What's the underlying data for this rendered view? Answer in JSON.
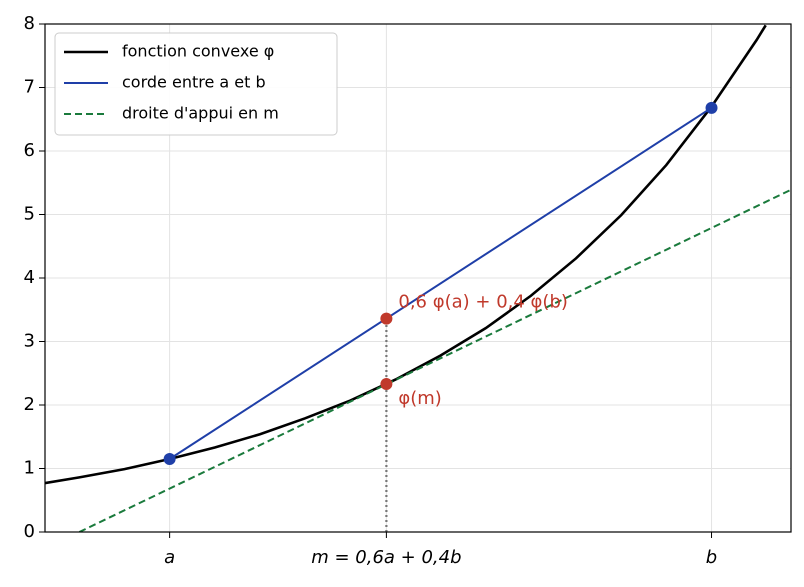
{
  "chart_data": {
    "type": "line",
    "xlim": [
      -0.19,
      3.94
    ],
    "ylim": [
      0,
      8
    ],
    "xticks": [
      {
        "value": 0.5,
        "label": "a"
      },
      {
        "value": 1.7,
        "label": "m = 0,6a + 0,4b"
      },
      {
        "value": 3.5,
        "label": "b"
      }
    ],
    "yticks": [
      0,
      1,
      2,
      3,
      4,
      5,
      6,
      7,
      8
    ],
    "grid": true,
    "legend": "upper left",
    "series": [
      {
        "name": "fonction convexe φ",
        "color": "#000000",
        "style": "solid",
        "x": [
          -0.19,
          0,
          0.25,
          0.5,
          0.75,
          1.0,
          1.25,
          1.5,
          1.75,
          2.0,
          2.25,
          2.5,
          2.75,
          3.0,
          3.25,
          3.5,
          3.75,
          3.8
        ],
        "values": [
          0.77,
          0.86,
          0.99,
          1.15,
          1.33,
          1.54,
          1.79,
          2.07,
          2.4,
          2.78,
          3.21,
          3.72,
          4.31,
          4.99,
          5.78,
          6.7,
          7.75,
          7.98
        ]
      },
      {
        "name": "corde entre a et b",
        "color": "#1f3fa8",
        "style": "solid",
        "markers": true,
        "x": [
          0.5,
          3.5
        ],
        "values": [
          1.15,
          6.68
        ]
      },
      {
        "name": "droite d'appui en m",
        "color": "#1a7a3c",
        "style": "dashed",
        "x": [
          0,
          3.94
        ],
        "values": [
          0,
          5.39
        ]
      }
    ],
    "points": {
      "color": "#c0392b",
      "x": [
        1.7,
        1.7
      ],
      "values": [
        3.36,
        2.33
      ]
    },
    "annotations": [
      "0,6 φ(a) + 0,4 φ(b)",
      "φ(m)"
    ]
  }
}
